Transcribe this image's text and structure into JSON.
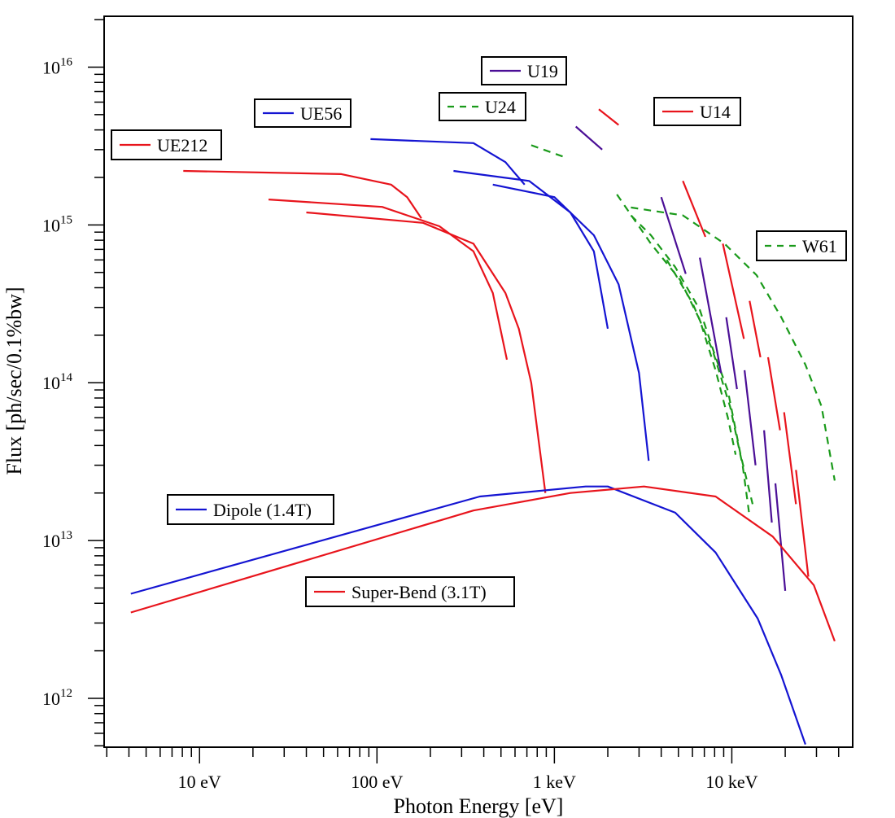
{
  "chart_data": {
    "type": "line",
    "title": "",
    "xlabel": "Photon Energy [eV]",
    "ylabel": "Flux [ph/sec/0.1%bw]",
    "xscale": "log",
    "yscale": "log",
    "xlim": [
      2.9,
      48000
    ],
    "ylim": [
      490000000000.0,
      2.1e+16
    ],
    "grid": false,
    "x_ticks": [
      {
        "value": 10,
        "label": "10  eV"
      },
      {
        "value": 100,
        "label": "100  eV"
      },
      {
        "value": 1000,
        "label": "1 keV"
      },
      {
        "value": 10000,
        "label": "10 keV"
      }
    ],
    "y_ticks": [
      {
        "value": 1000000000000.0,
        "base": "10",
        "exp": "12"
      },
      {
        "value": 10000000000000.0,
        "base": "10",
        "exp": "13"
      },
      {
        "value": 100000000000000.0,
        "base": "10",
        "exp": "14"
      },
      {
        "value": 1000000000000000.0,
        "base": "10",
        "exp": "15"
      },
      {
        "value": 1e+16,
        "base": "10",
        "exp": "16"
      }
    ],
    "series": [
      {
        "name": "UE212",
        "color": "#e8141c",
        "dash": false,
        "segments": [
          [
            [
              8.1,
              2200000000000000.0
            ],
            [
              63,
              2100000000000000.0
            ],
            [
              120,
              1800000000000000.0
            ],
            [
              148,
              1500000000000000.0
            ],
            [
              178,
              1100000000000000.0
            ]
          ],
          [
            [
              24.5,
              1450000000000000.0
            ],
            [
              107,
              1300000000000000.0
            ],
            [
              225,
              980000000000000.0
            ],
            [
              350,
              680000000000000.0
            ],
            [
              450,
              370000000000000.0
            ],
            [
              540,
              140000000000000.0
            ]
          ],
          [
            [
              40,
              1200000000000000.0
            ],
            [
              182,
              1030000000000000.0
            ],
            [
              350,
              760000000000000.0
            ],
            [
              530,
              370000000000000.0
            ],
            [
              630,
              220000000000000.0
            ],
            [
              740,
              100000000000000.0
            ],
            [
              890,
              20000000000000.0
            ]
          ]
        ]
      },
      {
        "name": "UE56",
        "color": "#1414d2",
        "dash": false,
        "segments": [
          [
            [
              92,
              3500000000000000.0
            ],
            [
              350,
              3300000000000000.0
            ],
            [
              530,
              2500000000000000.0
            ],
            [
              680,
              1800000000000000.0
            ]
          ],
          [
            [
              270,
              2200000000000000.0
            ],
            [
              720,
              1900000000000000.0
            ],
            [
              1230,
              1200000000000000.0
            ],
            [
              1670,
              680000000000000.0
            ],
            [
              2000,
              220000000000000.0
            ]
          ],
          [
            [
              450,
              1800000000000000.0
            ],
            [
              1000,
              1500000000000000.0
            ],
            [
              1670,
              860000000000000.0
            ],
            [
              2300,
              420000000000000.0
            ],
            [
              3000,
              115000000000000.0
            ],
            [
              3400,
              32000000000000.0
            ]
          ]
        ]
      },
      {
        "name": "U24",
        "color": "#1a9a1a",
        "dash": true,
        "segments": [
          [
            [
              740,
              3200000000000000.0
            ],
            [
              1130,
              2700000000000000.0
            ]
          ],
          [
            [
              2250,
              1560000000000000.0
            ],
            [
              3500,
              760000000000000.0
            ],
            [
              5100,
              450000000000000.0
            ],
            [
              6600,
              250000000000000.0
            ],
            [
              8100,
              120000000000000.0
            ],
            [
              9500,
              60000000000000.0
            ],
            [
              10500,
              35000000000000.0
            ]
          ],
          [
            [
              2700,
              1150000000000000.0
            ],
            [
              3500,
              860000000000000.0
            ],
            [
              4800,
              540000000000000.0
            ],
            [
              6600,
              290000000000000.0
            ],
            [
              8100,
              145000000000000.0
            ],
            [
              9500,
              89000000000000.0
            ],
            [
              11200,
              35000000000000.0
            ],
            [
              13100,
              17000000000000.0
            ]
          ],
          [
            [
              4300,
              600000000000000.0
            ],
            [
              6000,
              320000000000000.0
            ],
            [
              7800,
              160000000000000.0
            ],
            [
              9800,
              70000000000000.0
            ],
            [
              11500,
              30000000000000.0
            ],
            [
              12500,
              15000000000000.0
            ]
          ]
        ]
      },
      {
        "name": "U19",
        "color": "#4b0f96",
        "dash": false,
        "segments": [
          [
            [
              1320,
              4200000000000000.0
            ],
            [
              1860,
              3000000000000000.0
            ]
          ],
          [
            [
              4000,
              1500000000000000.0
            ],
            [
              5500,
              490000000000000.0
            ]
          ],
          [
            [
              6600,
              620000000000000.0
            ],
            [
              8700,
              115000000000000.0
            ]
          ],
          [
            [
              9300,
              260000000000000.0
            ],
            [
              10700,
              91000000000000.0
            ]
          ],
          [
            [
              11800,
              120000000000000.0
            ],
            [
              13600,
              30000000000000.0
            ]
          ],
          [
            [
              15200,
              50000000000000.0
            ],
            [
              16800,
              13000000000000.0
            ]
          ],
          [
            [
              17600,
              23000000000000.0
            ],
            [
              20000,
              4800000000000.0
            ]
          ]
        ]
      },
      {
        "name": "U14",
        "color": "#e8141c",
        "dash": false,
        "segments": [
          [
            [
              1780,
              5400000000000000.0
            ],
            [
              2300,
              4300000000000000.0
            ]
          ],
          [
            [
              5300,
              1900000000000000.0
            ],
            [
              7100,
              840000000000000.0
            ]
          ],
          [
            [
              8900,
              760000000000000.0
            ],
            [
              11700,
              190000000000000.0
            ]
          ],
          [
            [
              12600,
              330000000000000.0
            ],
            [
              14500,
              145000000000000.0
            ]
          ],
          [
            [
              16000,
              145000000000000.0
            ],
            [
              18700,
              50000000000000.0
            ]
          ],
          [
            [
              19700,
              65000000000000.0
            ],
            [
              23000,
              17000000000000.0
            ]
          ],
          [
            [
              23000,
              28000000000000.0
            ],
            [
              27000,
              5900000000000.0
            ]
          ]
        ]
      },
      {
        "name": "W61",
        "color": "#1a9a1a",
        "dash": true,
        "segments": [
          [
            [
              2700,
              1290000000000000.0
            ],
            [
              5300,
              1150000000000000.0
            ],
            [
              9100,
              760000000000000.0
            ],
            [
              13800,
              480000000000000.0
            ],
            [
              19000,
              260000000000000.0
            ],
            [
              26000,
              130000000000000.0
            ],
            [
              32000,
              71000000000000.0
            ],
            [
              38000,
              24000000000000.0
            ]
          ]
        ]
      },
      {
        "name": "Dipole (1.4T)",
        "color": "#1414d2",
        "dash": false,
        "segments": [
          [
            [
              4.1,
              4600000000000.0
            ],
            [
              380,
              19000000000000.0
            ],
            [
              1500,
              22000000000000.0
            ],
            [
              2000,
              22000000000000.0
            ],
            [
              4800,
              15000000000000.0
            ],
            [
              8100,
              8400000000000.0
            ],
            [
              14000,
              3200000000000.0
            ],
            [
              19000,
              1400000000000.0
            ],
            [
              26000,
              510000000000.0
            ]
          ]
        ]
      },
      {
        "name": "Super-Bend (3.1T)",
        "color": "#e8141c",
        "dash": false,
        "segments": [
          [
            [
              4.1,
              3500000000000.0
            ],
            [
              350,
              15500000000000.0
            ],
            [
              1230,
              20000000000000.0
            ],
            [
              3200,
              22000000000000.0
            ],
            [
              8100,
              19000000000000.0
            ],
            [
              17000,
              10600000000000.0
            ],
            [
              29000,
              5200000000000.0
            ],
            [
              38000,
              2300000000000.0
            ]
          ]
        ]
      }
    ],
    "legend": [
      {
        "label": "UE212",
        "color": "#e8141c",
        "dash": false
      },
      {
        "label": "UE56",
        "color": "#1414d2",
        "dash": false
      },
      {
        "label": "U24",
        "color": "#1a9a1a",
        "dash": true
      },
      {
        "label": "U19",
        "color": "#4b0f96",
        "dash": false
      },
      {
        "label": "U14",
        "color": "#e8141c",
        "dash": false
      },
      {
        "label": "W61",
        "color": "#1a9a1a",
        "dash": true
      },
      {
        "label": "Dipole (1.4T)",
        "color": "#1414d2",
        "dash": false
      },
      {
        "label": "Super-Bend (3.1T)",
        "color": "#e8141c",
        "dash": false
      }
    ],
    "legend_placement": "inline-annotations"
  }
}
